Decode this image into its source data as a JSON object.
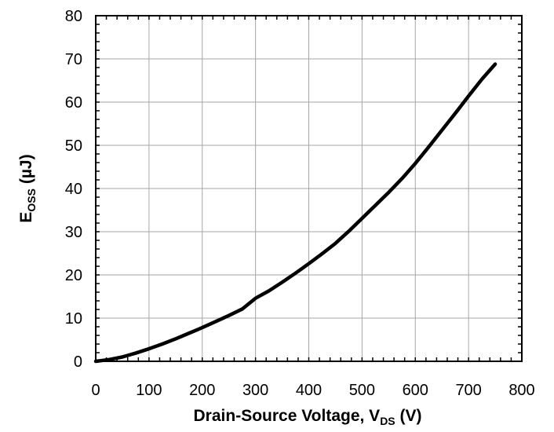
{
  "chart_data": {
    "type": "line",
    "title": "",
    "xlabel": {
      "main": "Drain-Source Voltage, V",
      "sub": "DS",
      "unit": " (V)"
    },
    "ylabel": {
      "main": "E",
      "sub": "OSS",
      "unit": " (µJ)"
    },
    "xlim": [
      0,
      800
    ],
    "ylim": [
      0,
      80
    ],
    "x_ticks": [
      "0",
      "100",
      "200",
      "300",
      "400",
      "500",
      "600",
      "700",
      "800"
    ],
    "y_ticks": [
      "0",
      "10",
      "20",
      "30",
      "40",
      "50",
      "60",
      "70",
      "80"
    ],
    "grid": true,
    "line_color": "#000000",
    "series": [
      {
        "x": [
          0,
          25,
          50,
          75,
          100,
          125,
          150,
          175,
          200,
          225,
          250,
          275,
          300,
          325,
          350,
          375,
          400,
          425,
          450,
          475,
          500,
          525,
          550,
          575,
          600,
          625,
          650,
          675,
          700,
          725,
          750
        ],
        "y": [
          0,
          0.4,
          1.0,
          1.9,
          2.9,
          4.0,
          5.2,
          6.5,
          7.8,
          9.2,
          10.6,
          12.1,
          14.6,
          16.3,
          18.3,
          20.4,
          22.6,
          24.9,
          27.3,
          30.1,
          33.1,
          36.1,
          39.1,
          42.3,
          45.8,
          49.6,
          53.5,
          57.4,
          61.4,
          65.3,
          68.8
        ]
      }
    ]
  }
}
